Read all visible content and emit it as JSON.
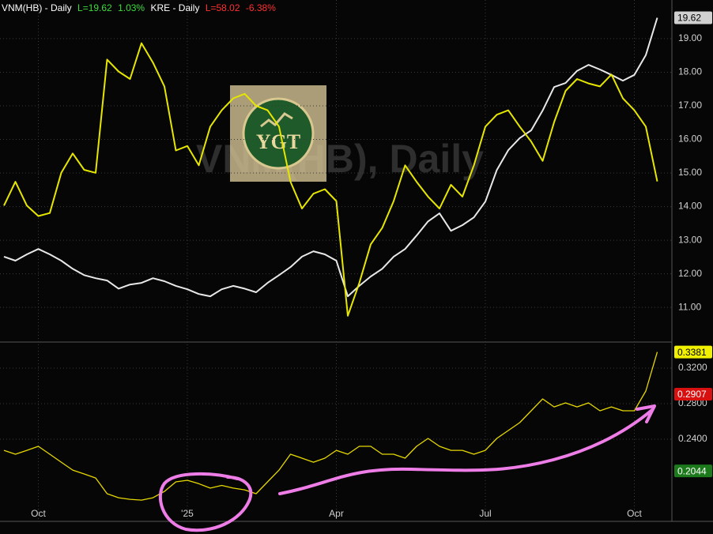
{
  "chart_data": [
    {
      "type": "line",
      "watermark": "VNM(HB), Daily",
      "logo_text": "YGT",
      "ylim": [
        10.04,
        20.15
      ],
      "yticks": [
        {
          "value": 11,
          "label": "11.00"
        },
        {
          "value": 12,
          "label": "12.00"
        },
        {
          "value": 13,
          "label": "13.00"
        },
        {
          "value": 14,
          "label": "14.00"
        },
        {
          "value": 15,
          "label": "15.00"
        },
        {
          "value": 16,
          "label": "16.00"
        },
        {
          "value": 17,
          "label": "17.00"
        },
        {
          "value": 18,
          "label": "18.00"
        },
        {
          "value": 19,
          "label": "19.00"
        }
      ],
      "y2lim": [
        47.4,
        70.2
      ],
      "grid": true,
      "price_tag": {
        "value": 19.62,
        "label": "19.62",
        "color": "#d0d0d0"
      },
      "series": [
        {
          "name": "VNM(HB) - Daily",
          "last_label": "L=19.62",
          "change": "1.03%",
          "color": "#e8e8e8",
          "values": [
            12.51,
            12.39,
            12.58,
            12.74,
            12.58,
            12.39,
            12.15,
            11.96,
            11.87,
            11.8,
            11.56,
            11.68,
            11.73,
            11.87,
            11.78,
            11.64,
            11.54,
            11.4,
            11.33,
            11.54,
            11.64,
            11.56,
            11.45,
            11.73,
            11.96,
            12.2,
            12.51,
            12.67,
            12.58,
            12.39,
            11.33,
            11.64,
            11.92,
            12.15,
            12.51,
            12.74,
            13.14,
            13.56,
            13.8,
            13.28,
            13.45,
            13.68,
            14.15,
            15.09,
            15.68,
            16.04,
            16.27,
            16.86,
            17.56,
            17.68,
            18.04,
            18.22,
            18.08,
            17.92,
            17.75,
            17.92,
            18.51,
            19.62
          ]
        },
        {
          "name": "KRE - Daily",
          "last_label": "L=58.02",
          "change": "-6.38%",
          "color": "#e6e600",
          "axis": "y2",
          "values": [
            56.4,
            58.0,
            56.4,
            55.7,
            55.9,
            58.6,
            59.9,
            58.8,
            58.6,
            66.2,
            65.4,
            64.9,
            67.3,
            66.0,
            64.4,
            60.1,
            60.4,
            59.1,
            61.7,
            62.8,
            63.6,
            63.9,
            63.1,
            62.8,
            61.7,
            58.0,
            56.2,
            57.2,
            57.5,
            56.7,
            49.0,
            51.2,
            53.8,
            54.9,
            56.7,
            59.1,
            58.0,
            57.0,
            56.2,
            57.8,
            57.0,
            59.1,
            61.7,
            62.5,
            62.8,
            61.7,
            60.7,
            59.4,
            62.0,
            64.1,
            64.9,
            64.6,
            64.4,
            65.2,
            63.6,
            62.8,
            61.7,
            58.02
          ]
        }
      ]
    },
    {
      "type": "line",
      "categories": [
        null,
        null,
        null,
        "Oct",
        null,
        null,
        null,
        null,
        null,
        null,
        null,
        null,
        null,
        null,
        null,
        null,
        "'25",
        null,
        null,
        null,
        null,
        null,
        null,
        null,
        null,
        null,
        null,
        null,
        null,
        "Apr",
        null,
        null,
        null,
        null,
        null,
        null,
        null,
        null,
        null,
        null,
        null,
        null,
        "Jul",
        null,
        null,
        null,
        null,
        null,
        null,
        null,
        null,
        null,
        null,
        null,
        null,
        "Oct",
        null,
        null
      ],
      "ylim": [
        0.1476,
        0.3431
      ],
      "yticks": [
        {
          "value": 0.24,
          "label": "0.2400"
        },
        {
          "value": 0.28,
          "label": "0.2800"
        },
        {
          "value": 0.32,
          "label": "0.3200"
        }
      ],
      "grid": true,
      "price_tags": [
        {
          "value": 0.3381,
          "label": "0.3381",
          "color": "#f0f000"
        },
        {
          "value": 0.2907,
          "label": "0.2907",
          "color": "#d81010"
        },
        {
          "value": 0.2044,
          "label": "0.2044",
          "color": "#1c7a1c"
        }
      ],
      "series": [
        {
          "color": "#e6d800",
          "values": [
            0.2275,
            0.2231,
            0.2275,
            0.232,
            0.2231,
            0.2142,
            0.2053,
            0.2009,
            0.1964,
            0.1787,
            0.1742,
            0.1724,
            0.1715,
            0.1742,
            0.1813,
            0.192,
            0.1938,
            0.19,
            0.185,
            0.188,
            0.185,
            0.1831,
            0.1787,
            0.192,
            0.2053,
            0.2231,
            0.2187,
            0.2142,
            0.2187,
            0.2275,
            0.2231,
            0.232,
            0.232,
            0.2231,
            0.2231,
            0.2187,
            0.232,
            0.2409,
            0.232,
            0.2275,
            0.2275,
            0.2231,
            0.2275,
            0.2409,
            0.2498,
            0.2587,
            0.272,
            0.2853,
            0.2764,
            0.2809,
            0.2764,
            0.2809,
            0.272,
            0.2764,
            0.272,
            0.272,
            0.2942,
            0.3381
          ]
        }
      ]
    }
  ]
}
